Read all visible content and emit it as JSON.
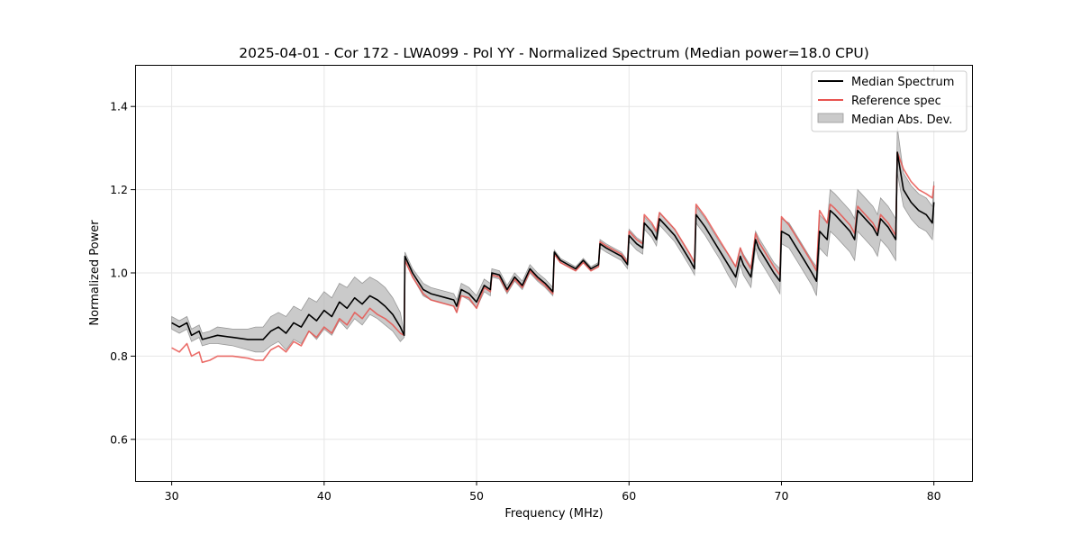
{
  "chart_data": {
    "type": "line",
    "title": "2025-04-01 - Cor 172 - LWA099 - Pol YY - Normalized Spectrum (Median power=18.0 CPU)",
    "xlabel": "Frequency (MHz)",
    "ylabel": "Normalized Power",
    "xlim": [
      27.6,
      82.5
    ],
    "ylim": [
      0.5,
      1.5
    ],
    "xticks": [
      30,
      40,
      50,
      60,
      70,
      80
    ],
    "yticks": [
      0.6,
      0.8,
      1.0,
      1.2,
      1.4
    ],
    "xtick_labels": [
      "30",
      "40",
      "50",
      "60",
      "70",
      "80"
    ],
    "ytick_labels": [
      "0.6",
      "0.8",
      "1.0",
      "1.2",
      "1.4"
    ],
    "grid": true,
    "legend_position": "upper-right",
    "series": [
      {
        "name": "Median Spectrum",
        "color": "#000000",
        "x": [
          30.0,
          30.5,
          31.0,
          31.3,
          31.8,
          32.0,
          32.5,
          33.0,
          34.0,
          35.0,
          35.5,
          36.0,
          36.5,
          37.0,
          37.5,
          38.0,
          38.5,
          39.0,
          39.5,
          40.0,
          40.5,
          41.0,
          41.5,
          42.0,
          42.5,
          43.0,
          43.5,
          44.0,
          44.5,
          45.0,
          45.25,
          45.3,
          45.8,
          46.5,
          47.0,
          47.5,
          48.0,
          48.5,
          48.7,
          49.0,
          49.5,
          50.0,
          50.5,
          50.9,
          51.0,
          51.5,
          52.0,
          52.5,
          53.0,
          53.5,
          54.0,
          54.5,
          55.0,
          55.1,
          55.5,
          56.0,
          56.5,
          57.0,
          57.5,
          58.0,
          58.1,
          58.5,
          59.0,
          59.5,
          59.9,
          60.0,
          60.5,
          60.9,
          61.0,
          61.5,
          61.8,
          62.0,
          62.5,
          63.0,
          63.5,
          64.0,
          64.3,
          64.4,
          65.0,
          65.5,
          66.0,
          66.5,
          67.0,
          67.3,
          67.5,
          68.0,
          68.3,
          68.5,
          69.0,
          69.5,
          69.9,
          70.0,
          70.5,
          71.0,
          71.5,
          72.0,
          72.3,
          72.5,
          73.0,
          73.2,
          73.5,
          74.0,
          74.5,
          74.8,
          75.0,
          75.5,
          76.0,
          76.3,
          76.5,
          77.0,
          77.5,
          77.6,
          78.0,
          78.5,
          79.0,
          79.5,
          79.9,
          80.0
        ],
        "values": [
          0.88,
          0.87,
          0.88,
          0.85,
          0.86,
          0.84,
          0.845,
          0.85,
          0.845,
          0.84,
          0.84,
          0.84,
          0.86,
          0.87,
          0.855,
          0.88,
          0.87,
          0.9,
          0.885,
          0.91,
          0.895,
          0.93,
          0.915,
          0.94,
          0.925,
          0.945,
          0.935,
          0.92,
          0.9,
          0.87,
          0.85,
          1.04,
          1.0,
          0.96,
          0.95,
          0.945,
          0.94,
          0.935,
          0.92,
          0.96,
          0.95,
          0.93,
          0.97,
          0.96,
          1.0,
          0.995,
          0.96,
          0.99,
          0.97,
          1.01,
          0.99,
          0.975,
          0.955,
          1.05,
          1.03,
          1.02,
          1.01,
          1.03,
          1.01,
          1.02,
          1.07,
          1.06,
          1.05,
          1.04,
          1.02,
          1.09,
          1.07,
          1.06,
          1.12,
          1.1,
          1.08,
          1.13,
          1.11,
          1.09,
          1.06,
          1.03,
          1.01,
          1.14,
          1.11,
          1.08,
          1.05,
          1.02,
          0.99,
          1.04,
          1.02,
          0.99,
          1.08,
          1.06,
          1.03,
          1.0,
          0.98,
          1.1,
          1.09,
          1.06,
          1.03,
          1.0,
          0.98,
          1.1,
          1.08,
          1.15,
          1.14,
          1.12,
          1.1,
          1.08,
          1.15,
          1.13,
          1.11,
          1.09,
          1.13,
          1.11,
          1.08,
          1.29,
          1.2,
          1.17,
          1.15,
          1.14,
          1.12,
          1.17
        ],
        "mad_low": [
          0.865,
          0.855,
          0.865,
          0.835,
          0.845,
          0.825,
          0.83,
          0.83,
          0.825,
          0.815,
          0.81,
          0.81,
          0.825,
          0.835,
          0.815,
          0.84,
          0.83,
          0.86,
          0.84,
          0.865,
          0.85,
          0.885,
          0.865,
          0.89,
          0.875,
          0.9,
          0.89,
          0.875,
          0.86,
          0.835,
          0.845,
          1.03,
          0.99,
          0.945,
          0.935,
          0.93,
          0.925,
          0.92,
          0.905,
          0.945,
          0.935,
          0.915,
          0.955,
          0.945,
          0.99,
          0.985,
          0.95,
          0.98,
          0.96,
          1.0,
          0.98,
          0.965,
          0.945,
          1.045,
          1.025,
          1.015,
          1.005,
          1.025,
          1.005,
          1.015,
          1.06,
          1.05,
          1.04,
          1.03,
          1.01,
          1.075,
          1.055,
          1.045,
          1.105,
          1.085,
          1.065,
          1.115,
          1.095,
          1.075,
          1.045,
          1.015,
          0.995,
          1.12,
          1.09,
          1.06,
          1.03,
          0.995,
          0.965,
          1.02,
          0.995,
          0.965,
          1.06,
          1.035,
          1.005,
          0.975,
          0.95,
          1.07,
          1.06,
          1.03,
          1.0,
          0.97,
          0.945,
          1.06,
          1.04,
          1.1,
          1.09,
          1.07,
          1.05,
          1.03,
          1.1,
          1.08,
          1.06,
          1.04,
          1.08,
          1.06,
          1.03,
          1.24,
          1.16,
          1.13,
          1.11,
          1.1,
          1.08,
          1.12
        ],
        "mad_high": [
          0.895,
          0.885,
          0.895,
          0.865,
          0.875,
          0.855,
          0.86,
          0.87,
          0.865,
          0.865,
          0.87,
          0.87,
          0.895,
          0.905,
          0.895,
          0.92,
          0.91,
          0.94,
          0.93,
          0.955,
          0.94,
          0.975,
          0.965,
          0.99,
          0.975,
          0.99,
          0.98,
          0.965,
          0.94,
          0.905,
          0.855,
          1.05,
          1.01,
          0.975,
          0.965,
          0.96,
          0.955,
          0.95,
          0.935,
          0.975,
          0.965,
          0.945,
          0.985,
          0.975,
          1.01,
          1.005,
          0.97,
          1.0,
          0.98,
          1.02,
          1.0,
          0.985,
          0.965,
          1.055,
          1.035,
          1.025,
          1.015,
          1.035,
          1.015,
          1.025,
          1.08,
          1.07,
          1.06,
          1.05,
          1.03,
          1.105,
          1.085,
          1.075,
          1.135,
          1.115,
          1.095,
          1.145,
          1.125,
          1.105,
          1.075,
          1.045,
          1.025,
          1.16,
          1.13,
          1.1,
          1.07,
          1.045,
          1.015,
          1.06,
          1.045,
          1.015,
          1.1,
          1.085,
          1.055,
          1.025,
          1.01,
          1.13,
          1.12,
          1.09,
          1.06,
          1.03,
          1.015,
          1.14,
          1.12,
          1.2,
          1.19,
          1.17,
          1.15,
          1.13,
          1.2,
          1.18,
          1.16,
          1.14,
          1.18,
          1.16,
          1.13,
          1.35,
          1.24,
          1.21,
          1.19,
          1.18,
          1.16,
          1.22
        ]
      },
      {
        "name": "Reference spec",
        "color": "#e8534f",
        "x": [
          30.0,
          30.5,
          31.0,
          31.3,
          31.8,
          32.0,
          32.5,
          33.0,
          34.0,
          35.0,
          35.5,
          36.0,
          36.5,
          37.0,
          37.5,
          38.0,
          38.5,
          39.0,
          39.5,
          40.0,
          40.5,
          41.0,
          41.5,
          42.0,
          42.5,
          43.0,
          43.5,
          44.0,
          44.5,
          45.0,
          45.25,
          45.3,
          45.8,
          46.5,
          47.0,
          47.5,
          48.0,
          48.5,
          48.7,
          49.0,
          49.5,
          50.0,
          50.5,
          50.9,
          51.0,
          51.5,
          52.0,
          52.5,
          53.0,
          53.5,
          54.0,
          54.5,
          55.0,
          55.1,
          55.5,
          56.0,
          56.5,
          57.0,
          57.5,
          58.0,
          58.1,
          58.5,
          59.0,
          59.5,
          59.9,
          60.0,
          60.5,
          60.9,
          61.0,
          61.5,
          61.8,
          62.0,
          62.5,
          63.0,
          63.5,
          64.0,
          64.3,
          64.4,
          65.0,
          65.5,
          66.0,
          66.5,
          67.0,
          67.3,
          67.5,
          68.0,
          68.3,
          68.5,
          69.0,
          69.5,
          69.9,
          70.0,
          70.5,
          71.0,
          71.5,
          72.0,
          72.3,
          72.5,
          73.0,
          73.2,
          73.5,
          74.0,
          74.5,
          74.8,
          75.0,
          75.5,
          76.0,
          76.3,
          76.5,
          77.0,
          77.5,
          77.6,
          78.0,
          78.5,
          79.0,
          79.5,
          79.9,
          80.0
        ],
        "values": [
          0.82,
          0.81,
          0.83,
          0.8,
          0.81,
          0.785,
          0.79,
          0.8,
          0.8,
          0.795,
          0.79,
          0.79,
          0.815,
          0.825,
          0.81,
          0.835,
          0.825,
          0.86,
          0.845,
          0.87,
          0.855,
          0.89,
          0.875,
          0.905,
          0.89,
          0.915,
          0.9,
          0.89,
          0.875,
          0.855,
          0.85,
          1.03,
          0.99,
          0.95,
          0.935,
          0.93,
          0.925,
          0.92,
          0.905,
          0.945,
          0.94,
          0.915,
          0.965,
          0.955,
          0.995,
          0.99,
          0.955,
          0.985,
          0.965,
          1.005,
          0.985,
          0.97,
          0.95,
          1.045,
          1.025,
          1.015,
          1.005,
          1.025,
          1.005,
          1.015,
          1.075,
          1.065,
          1.055,
          1.045,
          1.025,
          1.1,
          1.08,
          1.07,
          1.14,
          1.12,
          1.1,
          1.145,
          1.125,
          1.105,
          1.075,
          1.045,
          1.025,
          1.165,
          1.135,
          1.105,
          1.075,
          1.045,
          1.015,
          1.06,
          1.04,
          1.01,
          1.095,
          1.075,
          1.045,
          1.015,
          0.995,
          1.135,
          1.115,
          1.085,
          1.055,
          1.025,
          1.005,
          1.15,
          1.12,
          1.165,
          1.155,
          1.135,
          1.115,
          1.095,
          1.16,
          1.14,
          1.12,
          1.1,
          1.14,
          1.12,
          1.09,
          1.29,
          1.25,
          1.22,
          1.2,
          1.19,
          1.18,
          1.21
        ]
      }
    ],
    "legend": [
      "Median Spectrum",
      "Reference spec",
      "Median Abs. Dev."
    ],
    "band_color": "#b3b3b3"
  }
}
